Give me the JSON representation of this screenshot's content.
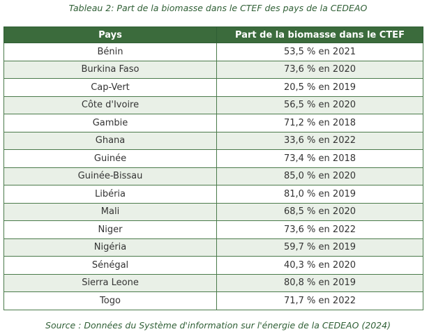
{
  "caption": "Tableau 2: Part de la biomasse dans le CTEF des pays de la CEDEAO",
  "headers": [
    "Pays",
    "Part de la biomasse dans le CTEF"
  ],
  "rows": [
    [
      "Bénin",
      "53,5 % en 2021"
    ],
    [
      "Burkina Faso",
      "73,6 % en 2020"
    ],
    [
      "Cap-Vert",
      "20,5 % en 2019"
    ],
    [
      "Côte d'Ivoire",
      "56,5 % en 2020"
    ],
    [
      "Gambie",
      "71,2 % en 2018"
    ],
    [
      "Ghana",
      "33,6 % en 2022"
    ],
    [
      "Guinée",
      "73,4 % en 2018"
    ],
    [
      "Guinée-Bissau",
      "85,0 % en 2020"
    ],
    [
      "Libéria",
      "81,0 % en 2019"
    ],
    [
      "Mali",
      "68,5 % en 2020"
    ],
    [
      "Niger",
      "73,6 % en 2022"
    ],
    [
      "Nigéria",
      "59,7 % en 2019"
    ],
    [
      "Sénégal",
      "40,3 % en 2020"
    ],
    [
      "Sierra Leone",
      "80,8 % en 2019"
    ],
    [
      "Togo",
      "71,7 % en 2022"
    ]
  ],
  "source": "Source : Données du Système d'information sur l'énergie de la CEDEAO (2024)"
}
